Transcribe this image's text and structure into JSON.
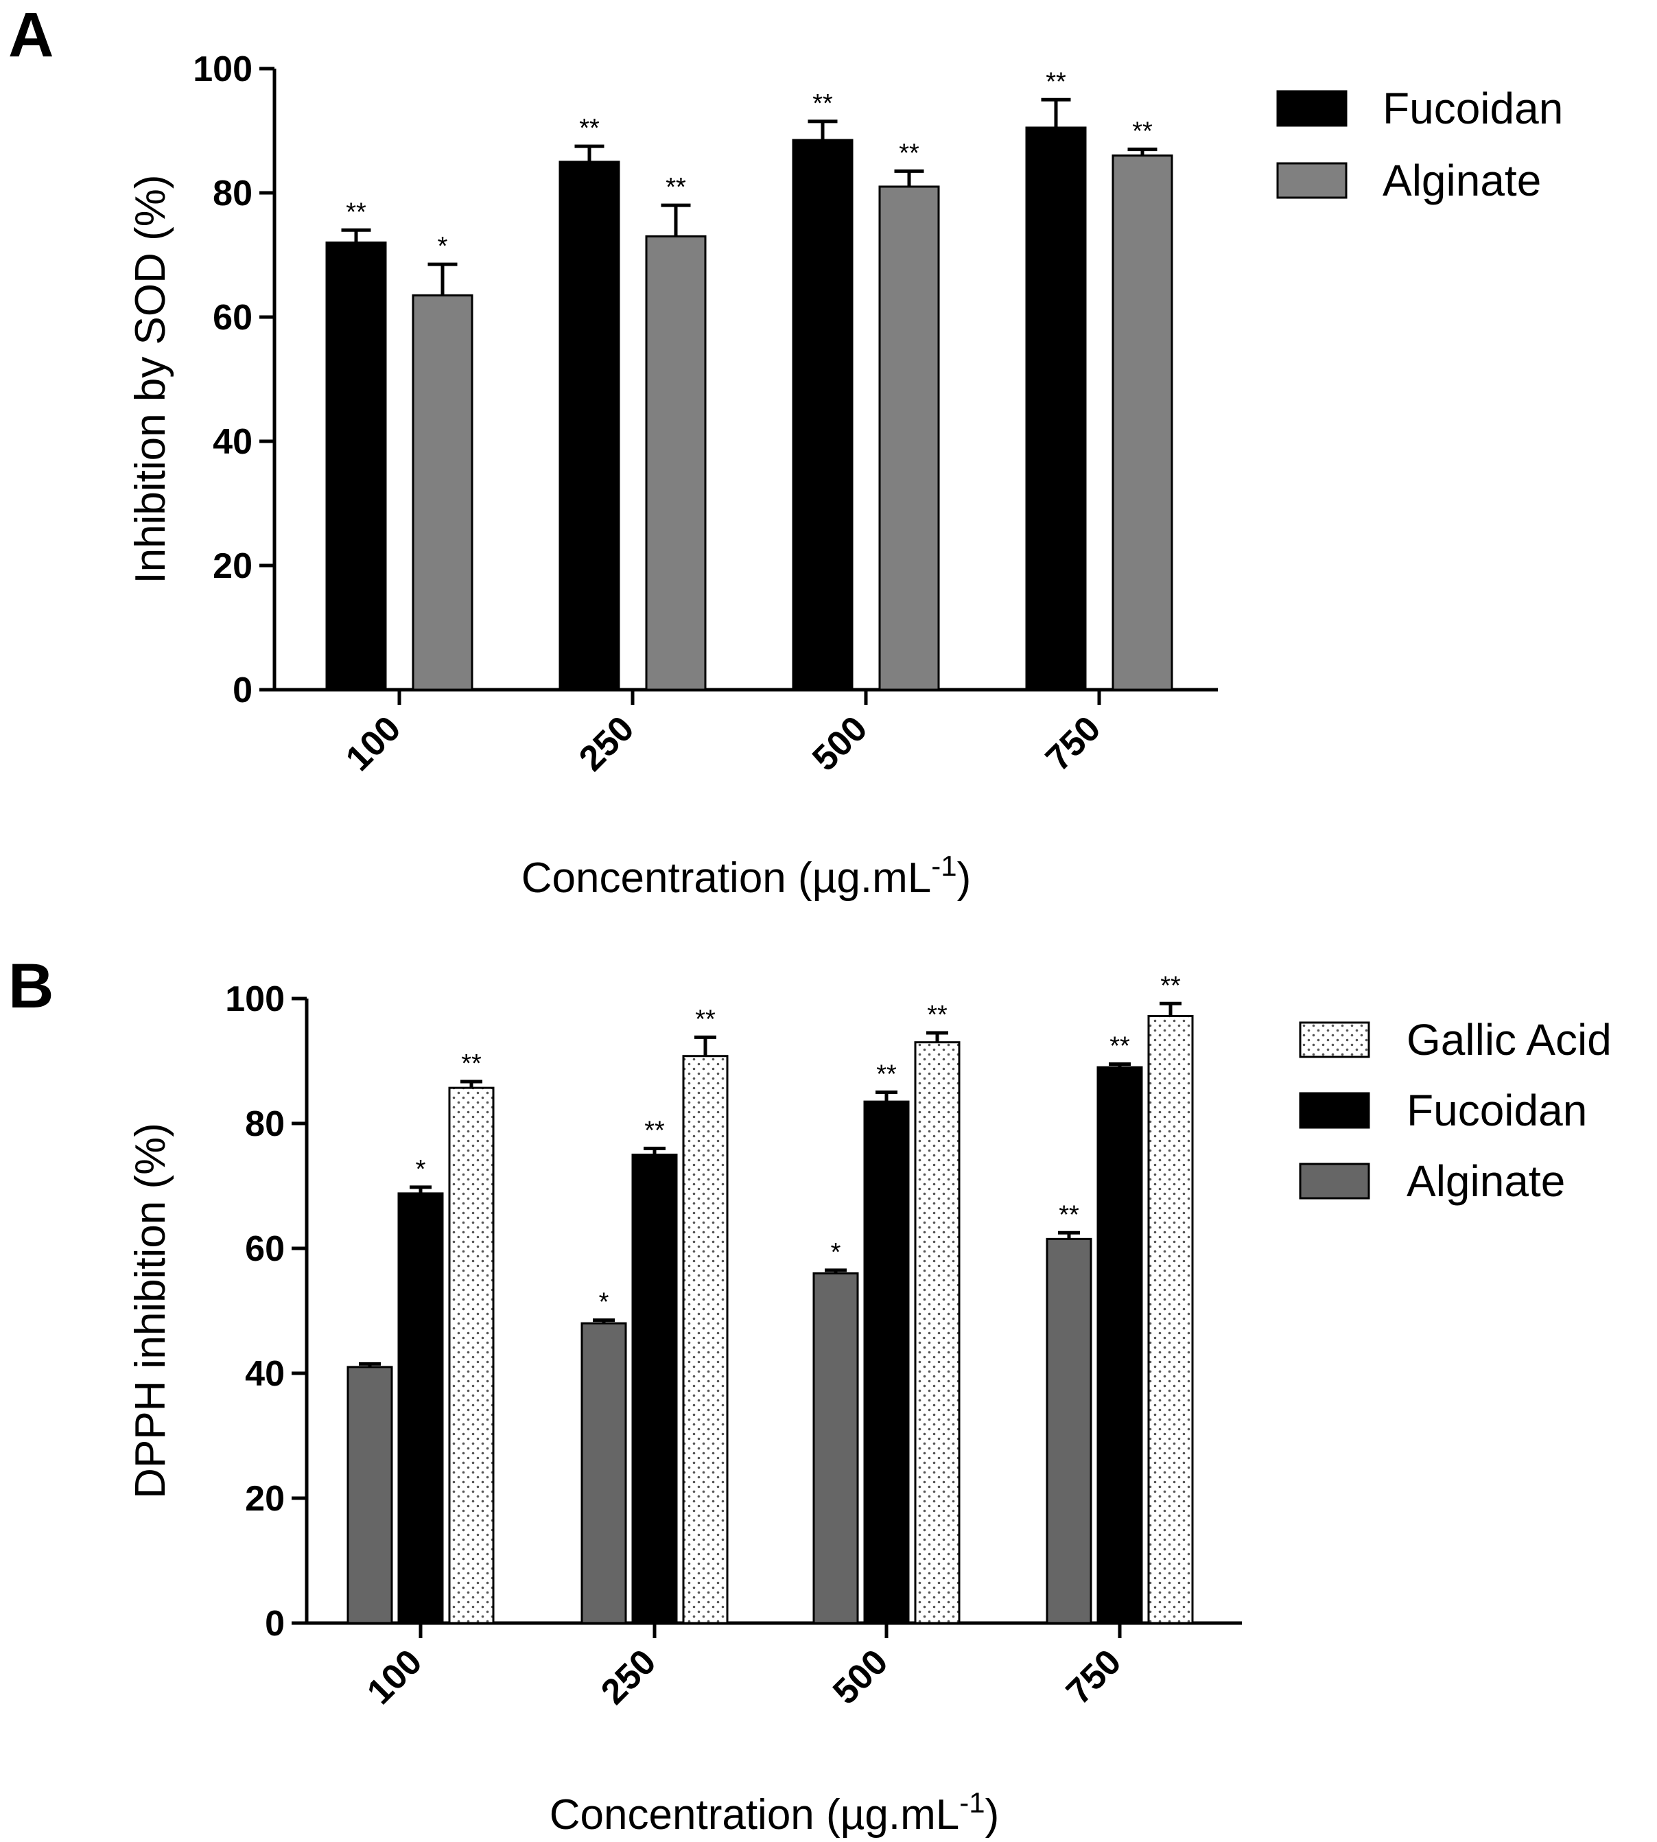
{
  "colors": {
    "fucoidan": "#000000",
    "alginate_a": "#808080",
    "alginate_b": "#666666",
    "gallic": "#ffffff",
    "stroke": "#000000"
  },
  "chart_data": [
    {
      "type": "bar",
      "panel": "A",
      "title": "",
      "xlabel": "Concentration (µg.mL",
      "xlabel_sup": "-1",
      "xlabel_close": ")",
      "ylabel": "Inhibition by SOD (%)",
      "ylim": [
        0,
        100
      ],
      "yticks": [
        "0",
        "20",
        "40",
        "60",
        "80",
        "100"
      ],
      "categories": [
        "100",
        "250",
        "500",
        "750"
      ],
      "legend_position": "top-right",
      "series": [
        {
          "name": "Fucoidan",
          "color_key": "fucoidan",
          "values": [
            72,
            85,
            88.5,
            90.5
          ],
          "errors": [
            2,
            2.5,
            3,
            4.5
          ],
          "significance": [
            "**",
            "**",
            "**",
            "**"
          ]
        },
        {
          "name": "Alginate",
          "color_key": "alginate_a",
          "values": [
            63.5,
            73,
            81,
            86
          ],
          "errors": [
            5,
            5,
            2.5,
            1
          ],
          "significance": [
            "*",
            "**",
            "**",
            "**"
          ]
        }
      ],
      "legend_order": [
        "Fucoidan",
        "Alginate"
      ]
    },
    {
      "type": "bar",
      "panel": "B",
      "title": "",
      "xlabel": "Concentration (µg.mL",
      "xlabel_sup": "-1",
      "xlabel_close": ")",
      "ylabel": "DPPH inhibition (%)",
      "ylim": [
        0,
        100
      ],
      "yticks": [
        "0",
        "20",
        "40",
        "60",
        "80",
        "100"
      ],
      "categories": [
        "100",
        "250",
        "500",
        "750"
      ],
      "legend_position": "top-right",
      "series": [
        {
          "name": "Alginate",
          "color_key": "alginate_b",
          "values": [
            41,
            48,
            56,
            61.5
          ],
          "errors": [
            0.5,
            0.5,
            0.5,
            1
          ],
          "significance": [
            "",
            "*",
            "*",
            "**"
          ]
        },
        {
          "name": "Fucoidan",
          "color_key": "fucoidan",
          "values": [
            68.8,
            75,
            83.5,
            89
          ],
          "errors": [
            1,
            1,
            1.5,
            0.5
          ],
          "significance": [
            "*",
            "**",
            "**",
            "**"
          ]
        },
        {
          "name": "Gallic Acid",
          "color_key": "gallic",
          "values": [
            85.7,
            90.8,
            93,
            97.2
          ],
          "errors": [
            1,
            3,
            1.5,
            2
          ],
          "significance": [
            "**",
            "**",
            "**",
            "**"
          ]
        }
      ],
      "legend_order": [
        "Gallic Acid",
        "Fucoidan",
        "Alginate"
      ]
    }
  ]
}
